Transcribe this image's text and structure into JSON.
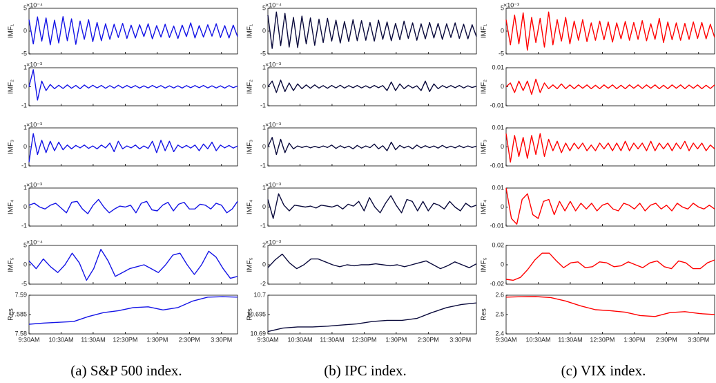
{
  "chart_data": [
    {
      "type": "line",
      "caption": "(a) S&P 500 index.",
      "color": "#1414e6",
      "xlim": [
        0,
        390
      ],
      "xticks": [
        {
          "value": 0,
          "label": "9:30AM"
        },
        {
          "value": 60,
          "label": "10:30AM"
        },
        {
          "value": 120,
          "label": "11:30AM"
        },
        {
          "value": 180,
          "label": "12:30PM"
        },
        {
          "value": 240,
          "label": "1:30PM"
        },
        {
          "value": 300,
          "label": "2:30PM"
        },
        {
          "value": 360,
          "label": "3:30PM"
        }
      ],
      "panels": [
        {
          "ylabel": "IMF₁",
          "multiplier": "×10⁻⁴",
          "ylim": [
            -5,
            5
          ],
          "yticks": [
            -5,
            0,
            5
          ],
          "values": [
            2.5,
            -2.8,
            3.1,
            -2.2,
            2.9,
            -3,
            2.4,
            -2.6,
            3.2,
            -2.1,
            2.7,
            -2.9,
            2.2,
            -1.8,
            2.5,
            -2.3,
            1.9,
            -2.1,
            1.6,
            -1.8,
            1.5,
            -1.4,
            1.7,
            -1.6,
            1.3,
            -1.5,
            1.4,
            -1.2,
            1.6,
            -1.7,
            1.2,
            -1.3,
            1.5,
            -1.4,
            1.1,
            -1.6,
            1.3,
            -1.2,
            1.8,
            -1.5,
            1.2,
            -1.3,
            1.4,
            -1.1,
            1.6,
            -1.4,
            1.2,
            -1.5,
            1.3,
            -1.2
          ]
        },
        {
          "ylabel": "IMF₂",
          "multiplier": "×10⁻³",
          "ylim": [
            -1,
            1
          ],
          "yticks": [
            -1,
            0,
            1
          ],
          "values": [
            0,
            0.9,
            -0.7,
            0.3,
            -0.2,
            0.12,
            -0.1,
            0.08,
            -0.09,
            0.1,
            -0.08,
            0.07,
            -0.1,
            0.09,
            -0.07,
            0.08,
            -0.06,
            0.07,
            -0.08,
            0.06,
            -0.07,
            0.08,
            -0.06,
            0.07,
            -0.05,
            0.06,
            -0.07,
            0.05,
            -0.06,
            0.07,
            -0.05,
            0.06,
            -0.07,
            0.05,
            -0.06,
            0.05,
            -0.07,
            0.06,
            -0.05,
            0.06,
            -0.05,
            0.07,
            -0.06,
            0.05,
            -0.06,
            0.05,
            -0.07,
            0.06,
            -0.05,
            0.04
          ]
        },
        {
          "ylabel": "IMF₃",
          "multiplier": "×10⁻³",
          "ylim": [
            -1,
            1
          ],
          "yticks": [
            -1,
            0,
            1
          ],
          "values": [
            -0.8,
            0.7,
            -0.4,
            0.35,
            -0.3,
            0.3,
            -0.2,
            0.25,
            -0.15,
            0.1,
            -0.1,
            0.08,
            -0.05,
            0.1,
            -0.08,
            0.05,
            -0.1,
            0.1,
            -0.05,
            0.2,
            -0.25,
            0.3,
            -0.1,
            0.05,
            -0.05,
            0.1,
            -0.1,
            0.05,
            -0.08,
            0.3,
            -0.3,
            0.35,
            -0.2,
            0.3,
            -0.25,
            0.1,
            -0.05,
            0.08,
            -0.06,
            0.1,
            -0.2,
            0.15,
            -0.1,
            0.25,
            -0.2,
            0.1,
            -0.05,
            0.08,
            -0.06,
            0.05
          ]
        },
        {
          "ylabel": "IMF₄",
          "multiplier": "×10⁻³",
          "ylim": [
            -1,
            1
          ],
          "yticks": [
            -1,
            0,
            1
          ],
          "values": [
            0.1,
            0.2,
            0,
            -0.1,
            0.1,
            0.2,
            -0.05,
            -0.3,
            0.25,
            0.3,
            -0.1,
            -0.35,
            0.1,
            0.4,
            0,
            -0.3,
            -0.1,
            0.05,
            0,
            0.1,
            -0.3,
            0.2,
            0.3,
            -0.15,
            -0.2,
            0.1,
            0.25,
            -0.2,
            0.15,
            0.25,
            -0.1,
            -0.1,
            0.15,
            0.1,
            -0.1,
            0.2,
            0.1,
            -0.3,
            -0.1,
            0.3
          ]
        },
        {
          "ylabel": "IMF₅",
          "multiplier": "×10⁻⁴",
          "ylim": [
            -5,
            5
          ],
          "yticks": [
            -5,
            0,
            5
          ],
          "values": [
            1,
            -1,
            1.5,
            -0.5,
            -2,
            0,
            3,
            0.5,
            -4,
            -1,
            4,
            1,
            -3,
            -2,
            -1,
            -0.5,
            0,
            -1,
            -2,
            0,
            2.5,
            3,
            0,
            -2.5,
            0,
            3.5,
            2,
            -1,
            -3.5,
            -3
          ]
        },
        {
          "ylabel": "Res",
          "ylim": [
            7.58,
            7.59
          ],
          "yticks": [
            7.58,
            7.585,
            7.59
          ],
          "values": [
            7.5825,
            7.5828,
            7.583,
            7.5832,
            7.5845,
            7.5855,
            7.586,
            7.5868,
            7.587,
            7.5862,
            7.5868,
            7.5885,
            7.5895,
            7.5896,
            7.5895
          ]
        }
      ]
    },
    {
      "type": "line",
      "caption": "(b) IPC index.",
      "color": "#0a0a3c",
      "xlim": [
        0,
        390
      ],
      "xticks": [
        {
          "value": 0,
          "label": "9:30AM"
        },
        {
          "value": 60,
          "label": "10:30AM"
        },
        {
          "value": 120,
          "label": "11:30AM"
        },
        {
          "value": 180,
          "label": "12:30PM"
        },
        {
          "value": 240,
          "label": "1:30PM"
        },
        {
          "value": 300,
          "label": "2:30PM"
        },
        {
          "value": 360,
          "label": "3:30PM"
        }
      ],
      "panels": [
        {
          "ylabel": "IMF₁",
          "multiplier": "×10⁻⁴",
          "ylim": [
            -5,
            5
          ],
          "yticks": [
            -5,
            0,
            5
          ],
          "values": [
            3.5,
            -3.8,
            4.2,
            -3.2,
            3.9,
            -3.5,
            3,
            -3.6,
            3.3,
            -2.8,
            2.9,
            -3.1,
            2.6,
            -2.5,
            2.8,
            -2.2,
            2.4,
            -2.6,
            2.1,
            -2.3,
            2.5,
            -2.1,
            2.3,
            -2,
            1.9,
            -2.2,
            2.4,
            -1.8,
            2,
            -2.1,
            1.7,
            -1.9,
            2.2,
            -1.6,
            1.8,
            -2,
            1.6,
            -1.7,
            1.9,
            -1.5,
            1.7,
            -1.8,
            1.6,
            -1.4,
            1.8,
            -1.6,
            1.5,
            -1.7,
            1.4,
            -1.2
          ]
        },
        {
          "ylabel": "IMF₂",
          "multiplier": "×10⁻³",
          "ylim": [
            -1,
            1
          ],
          "yticks": [
            -1,
            0,
            1
          ],
          "values": [
            0,
            0.3,
            -0.3,
            0.35,
            -0.25,
            0.2,
            -0.2,
            0.15,
            -0.1,
            0.1,
            -0.08,
            0.1,
            -0.07,
            0.06,
            -0.08,
            0.07,
            -0.06,
            0.08,
            -0.07,
            0.06,
            -0.05,
            0.07,
            -0.06,
            0.05,
            -0.06,
            0.07,
            -0.05,
            0.06,
            -0.2,
            0.25,
            -0.2,
            0.15,
            -0.1,
            0.08,
            -0.06,
            0.05,
            -0.2,
            0.3,
            -0.25,
            0.15,
            -0.1,
            0.06,
            -0.05,
            0.06,
            -0.05,
            0.07,
            -0.06,
            0.05,
            -0.04,
            0.03
          ]
        },
        {
          "ylabel": "IMF₃",
          "multiplier": "×10⁻³",
          "ylim": [
            -1,
            1
          ],
          "yticks": [
            -1,
            0,
            1
          ],
          "values": [
            0,
            0.5,
            -0.4,
            0.4,
            -0.3,
            0.2,
            -0.1,
            0.05,
            -0.03,
            0.04,
            -0.05,
            0.03,
            -0.04,
            0.05,
            -0.03,
            0.1,
            -0.08,
            0.06,
            -0.05,
            0.04,
            -0.1,
            0.08,
            -0.06,
            0.05,
            -0.04,
            0.15,
            -0.1,
            0.06,
            -0.2,
            0.25,
            -0.15,
            0.08,
            -0.05,
            0.04,
            -0.1,
            0.1,
            -0.05,
            0.06,
            -0.04,
            0.05,
            -0.06,
            0.08,
            -0.05,
            0.04,
            -0.05,
            0.06,
            -0.04,
            0.05,
            -0.03,
            0.04
          ]
        },
        {
          "ylabel": "IMF₄",
          "multiplier": "×10⁻³",
          "ylim": [
            -1,
            1
          ],
          "yticks": [
            -1,
            0,
            1
          ],
          "values": [
            0.4,
            -0.6,
            0.7,
            0.1,
            -0.2,
            0.1,
            0.05,
            0,
            0.05,
            -0.05,
            0.1,
            0.05,
            0,
            0.1,
            -0.1,
            0.15,
            0.05,
            0.3,
            -0.2,
            0.5,
            0,
            -0.3,
            0.2,
            0.6,
            0.1,
            -0.3,
            0.4,
            0.3,
            -0.2,
            0.3,
            -0.2,
            0.2,
            0.1,
            -0.1,
            0.3,
            0,
            -0.2,
            0.2,
            0,
            0.1
          ]
        },
        {
          "ylabel": "IMF₅",
          "multiplier": "×10⁻³",
          "ylim": [
            -2,
            2
          ],
          "yticks": [
            -2,
            0,
            2
          ],
          "values": [
            -0.3,
            0.5,
            1.1,
            0.2,
            -0.4,
            0,
            0.6,
            0.6,
            0.3,
            0,
            -0.2,
            0,
            -0.1,
            0,
            0,
            0.1,
            0,
            -0.1,
            0,
            -0.2,
            0,
            0.2,
            0.4,
            0,
            -0.4,
            -0.1,
            0.3,
            0,
            -0.3,
            0.1
          ]
        },
        {
          "ylabel": "Res",
          "ylim": [
            10.69,
            10.7
          ],
          "yticks": [
            10.69,
            10.695,
            10.7
          ],
          "values": [
            10.6906,
            10.6915,
            10.6918,
            10.6918,
            10.692,
            10.6923,
            10.6926,
            10.6932,
            10.6935,
            10.6935,
            10.694,
            10.6955,
            10.6968,
            10.6976,
            10.698
          ]
        }
      ]
    },
    {
      "type": "line",
      "caption": "(c) VIX index.",
      "color": "#ff0000",
      "xlim": [
        0,
        390
      ],
      "xticks": [
        {
          "value": 0,
          "label": "9:30AM"
        },
        {
          "value": 60,
          "label": "10:30AM"
        },
        {
          "value": 120,
          "label": "11:30AM"
        },
        {
          "value": 180,
          "label": "12:30PM"
        },
        {
          "value": 240,
          "label": "1:30PM"
        },
        {
          "value": 300,
          "label": "2:30PM"
        },
        {
          "value": 360,
          "label": "3:30PM"
        }
      ],
      "panels": [
        {
          "ylabel": "IMF₁",
          "multiplier": "×10⁻³",
          "ylim": [
            -5,
            5
          ],
          "yticks": [
            -5,
            0,
            5
          ],
          "values": [
            2.5,
            -3,
            3.5,
            -2.8,
            4,
            -4.2,
            3,
            -2.5,
            2.8,
            -3.5,
            4.2,
            -3,
            2.5,
            -2.2,
            3,
            -2.8,
            2.2,
            -2,
            2.5,
            -2.3,
            1.8,
            -2,
            2.2,
            -1.9,
            2,
            -2.4,
            1.8,
            -1.7,
            2.1,
            -2,
            1.9,
            -1.8,
            2.3,
            -2.1,
            1.6,
            -1.8,
            2.8,
            -2.5,
            2,
            -1.9,
            1.8,
            -2,
            1.7,
            -1.8,
            2,
            -1.6,
            1.9,
            -1.7,
            1.5,
            -1.4
          ]
        },
        {
          "ylabel": "IMF₂",
          "ylim": [
            -0.01,
            0.01
          ],
          "yticks": [
            -0.01,
            0,
            0.01
          ],
          "values": [
            0,
            0.002,
            -0.003,
            0.003,
            -0.002,
            0.003,
            -0.004,
            0.004,
            -0.003,
            0.002,
            -0.001,
            0.001,
            -0.001,
            0.0015,
            -0.001,
            0.001,
            -0.001,
            0.001,
            -0.0008,
            0.001,
            -0.001,
            0.0008,
            -0.001,
            0.001,
            -0.0008,
            0.001,
            -0.001,
            0.0008,
            -0.001,
            0.001,
            -0.0008,
            0.001,
            -0.0009,
            0.001,
            -0.0008,
            0.001,
            -0.001,
            0.0008,
            -0.001,
            0.001,
            -0.0008,
            0.001,
            -0.001,
            0.0009,
            -0.0008,
            0.001,
            -0.001,
            0.0008,
            -0.0009,
            0.001
          ]
        },
        {
          "ylabel": "IMF₃",
          "ylim": [
            -0.01,
            0.01
          ],
          "yticks": [
            -0.01,
            0,
            0.01
          ],
          "values": [
            0.007,
            -0.008,
            0.006,
            -0.005,
            0.005,
            -0.006,
            0.006,
            -0.004,
            0.007,
            -0.005,
            0.004,
            -0.002,
            0.003,
            -0.003,
            0.002,
            -0.002,
            0.002,
            -0.001,
            0.002,
            -0.002,
            0.001,
            -0.002,
            0.002,
            -0.001,
            0.002,
            -0.002,
            0.002,
            -0.002,
            0.003,
            -0.002,
            0.002,
            -0.001,
            0.002,
            -0.002,
            0.003,
            -0.002,
            0.002,
            -0.001,
            0.002,
            -0.002,
            0.002,
            -0.001,
            0.003,
            -0.002,
            0.002,
            -0.001,
            0.002,
            -0.002,
            0.001,
            -0.001
          ]
        },
        {
          "ylabel": "IMF₄",
          "ylim": [
            -0.01,
            0.01
          ],
          "yticks": [
            -0.01,
            0,
            0.01
          ],
          "values": [
            0.01,
            -0.006,
            -0.009,
            0.004,
            0.007,
            -0.004,
            -0.006,
            0.003,
            0.004,
            -0.004,
            0.003,
            -0.002,
            0.003,
            -0.002,
            0.002,
            -0.001,
            0.002,
            -0.002,
            0.001,
            0.002,
            -0.001,
            -0.002,
            0.002,
            0.001,
            -0.001,
            0.002,
            -0.002,
            0.001,
            0.002,
            -0.001,
            0.001,
            -0.002,
            0.002,
            0,
            -0.001,
            0.002,
            0,
            -0.001,
            0.001,
            -0.001
          ]
        },
        {
          "ylabel": "IMF₅",
          "ylim": [
            -0.02,
            0.02
          ],
          "yticks": [
            -0.02,
            0,
            0.02
          ],
          "values": [
            -0.015,
            -0.016,
            -0.013,
            -0.005,
            0.005,
            0.012,
            0.012,
            0.004,
            -0.003,
            0.002,
            0.003,
            -0.003,
            -0.002,
            0.003,
            0.002,
            -0.002,
            -0.001,
            0.003,
            0,
            -0.003,
            0.002,
            0.004,
            -0.002,
            -0.004,
            0.004,
            0.002,
            -0.004,
            -0.004,
            0.002,
            0.005
          ]
        },
        {
          "ylabel": "Res",
          "ylim": [
            2.4,
            2.6
          ],
          "yticks": [
            2.4,
            2.5,
            2.6
          ],
          "values": [
            2.59,
            2.592,
            2.593,
            2.588,
            2.57,
            2.545,
            2.525,
            2.52,
            2.512,
            2.495,
            2.49,
            2.51,
            2.515,
            2.505,
            2.5
          ]
        }
      ]
    }
  ]
}
